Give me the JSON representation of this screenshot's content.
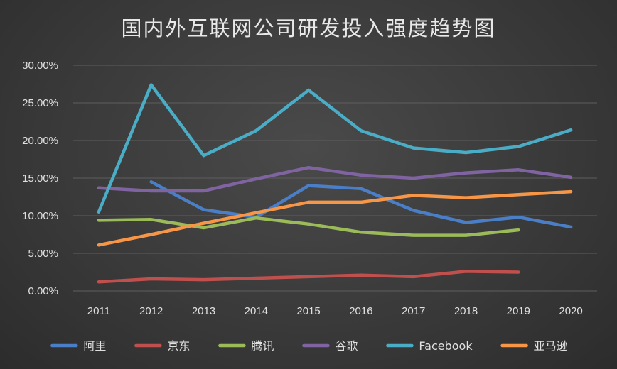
{
  "chart_data": {
    "type": "line",
    "title": "国内外互联网公司研发投入强度趋势图",
    "xlabel": "",
    "ylabel": "",
    "categories": [
      "2011",
      "2012",
      "2013",
      "2014",
      "2015",
      "2016",
      "2017",
      "2018",
      "2019",
      "2020"
    ],
    "ylim": [
      0,
      30
    ],
    "yticks": [
      "0.00%",
      "5.00%",
      "10.00%",
      "15.00%",
      "20.00%",
      "25.00%",
      "30.00%"
    ],
    "grid": true,
    "legend_position": "bottom",
    "series": [
      {
        "name": "阿里",
        "color": "#4a7fc7",
        "values": [
          null,
          14.5,
          10.8,
          9.8,
          14.0,
          13.6,
          10.7,
          9.1,
          9.8,
          8.5
        ]
      },
      {
        "name": "京东",
        "color": "#c0504d",
        "values": [
          1.2,
          1.6,
          1.5,
          1.7,
          1.9,
          2.1,
          1.9,
          2.6,
          2.5,
          null
        ]
      },
      {
        "name": "腾讯",
        "color": "#9bbb59",
        "values": [
          9.4,
          9.5,
          8.4,
          9.7,
          8.9,
          7.8,
          7.4,
          7.4,
          8.1,
          null
        ]
      },
      {
        "name": "谷歌",
        "color": "#8064a2",
        "values": [
          13.7,
          13.3,
          13.3,
          14.9,
          16.4,
          15.4,
          15.0,
          15.7,
          16.1,
          15.1
        ]
      },
      {
        "name": "Facebook",
        "color": "#4bacc6",
        "values": [
          10.5,
          27.4,
          18.0,
          21.3,
          26.7,
          21.3,
          19.0,
          18.4,
          19.2,
          21.4
        ]
      },
      {
        "name": "亚马逊",
        "color": "#f79646",
        "values": [
          6.1,
          7.5,
          9.0,
          10.4,
          11.8,
          11.8,
          12.7,
          12.4,
          12.8,
          13.2
        ]
      }
    ]
  }
}
